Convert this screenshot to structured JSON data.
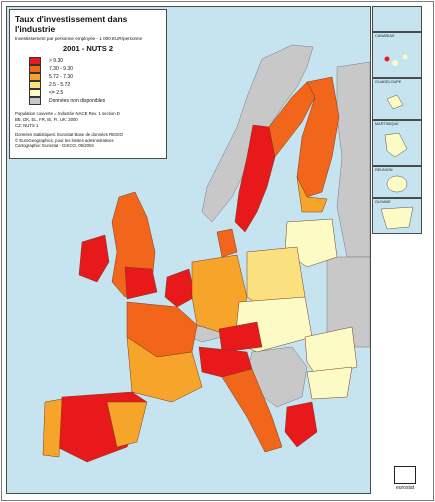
{
  "legend": {
    "title": "Taux d'investissement dans l'industrie",
    "subtitle": "Investissement par personne employée - 1 000 EUR/personne",
    "year_level": "2001 - NUTS 2",
    "classes": [
      {
        "label": "> 9.30",
        "color": "#e8191b"
      },
      {
        "label": "7.30 - 9.30",
        "color": "#f2661c"
      },
      {
        "label": "5.72 - 7.30",
        "color": "#f7a42a"
      },
      {
        "label": "2.5 - 5.72",
        "color": "#fbe080"
      },
      {
        "label": "<= 2.5",
        "color": "#fdfbc5"
      },
      {
        "label": "Données non disponibles",
        "color": "#c8c8c8"
      }
    ],
    "notes": [
      "Population couverte = Industrie NACE Rev. 1 section D",
      "BE, DK, EL, FR, IE, FI, UK: 2000",
      "CZ: NUTS 1"
    ],
    "source": [
      "Données statistiques: Eurostat Base de données REGIO",
      "© EuroGeographics, pour les limites administratives",
      "Cartographie: Eurostat - GISCO, 09/2004"
    ]
  },
  "insets": [
    {
      "label": "CANARIAS"
    },
    {
      "label": "GUADELOUPE"
    },
    {
      "label": "MARTINIQUE"
    },
    {
      "label": "REUNION"
    },
    {
      "label": "GUYANE"
    }
  ],
  "logo": {
    "text": "eurostat"
  },
  "colors": {
    "sea": "#c6e4ef",
    "nonEU": "#c8c8c8",
    "border": "#7a5a3a"
  }
}
